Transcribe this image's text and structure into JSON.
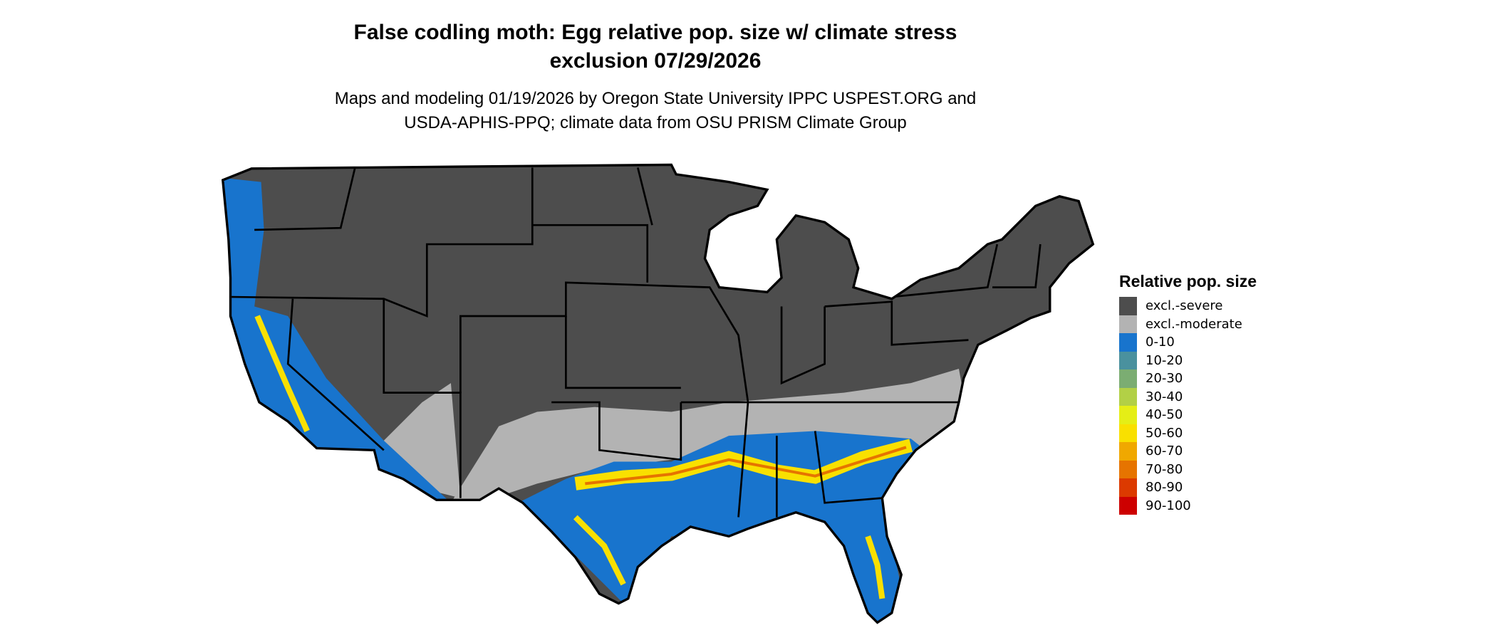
{
  "title": {
    "line1": "False codling moth: Egg relative pop. size w/ climate stress",
    "line2": "exclusion 07/29/2026"
  },
  "subtitle": {
    "line1": "Maps and modeling 01/19/2026 by Oregon State University IPPC USPEST.ORG and",
    "line2": "USDA-APHIS-PPQ; climate data from OSU PRISM Climate Group"
  },
  "legend": {
    "title": "Relative pop. size",
    "items": [
      {
        "label": "excl.-severe",
        "color": "#4d4d4d"
      },
      {
        "label": "excl.-moderate",
        "color": "#b3b3b3"
      },
      {
        "label": "0-10",
        "color": "#1874cd"
      },
      {
        "label": "10-20",
        "color": "#4a919e"
      },
      {
        "label": "20-30",
        "color": "#7bad72"
      },
      {
        "label": "30-40",
        "color": "#b2d046"
      },
      {
        "label": "40-50",
        "color": "#e5ee16"
      },
      {
        "label": "50-60",
        "color": "#f9e000"
      },
      {
        "label": "60-70",
        "color": "#f0a800"
      },
      {
        "label": "70-80",
        "color": "#e67400"
      },
      {
        "label": "80-90",
        "color": "#dc3a00"
      },
      {
        "label": "90-100",
        "color": "#cd0000"
      }
    ]
  }
}
